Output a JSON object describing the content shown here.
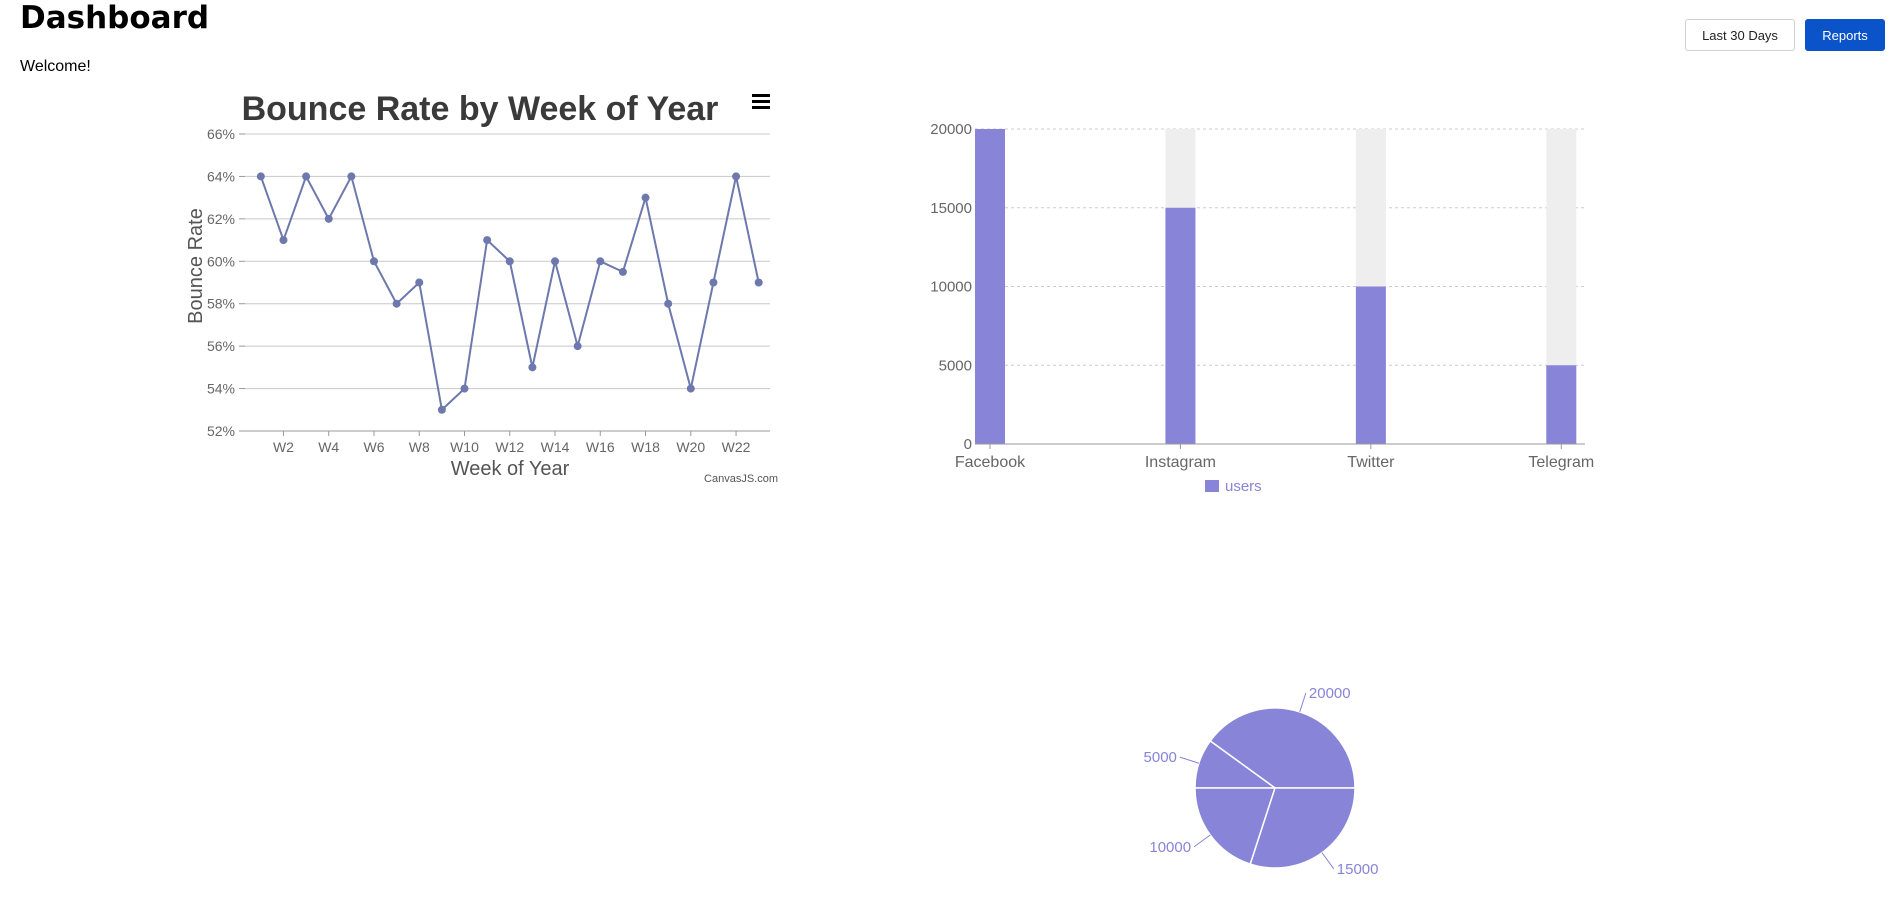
{
  "header": {
    "title": "Dashboard",
    "welcome": "Welcome!"
  },
  "toolbar": {
    "range_label": "Last 30 Days",
    "reports_label": "Reports",
    "accent_color": "#0b53c9"
  },
  "chart_data": [
    {
      "type": "line",
      "title": "Bounce Rate by Week of Year",
      "xlabel": "Week of Year",
      "ylabel": "Bounce Rate",
      "watermark": "CanvasJS.com",
      "menu_icon": "hamburger-menu-icon",
      "x_ticks": [
        "W2",
        "W4",
        "W6",
        "W8",
        "W10",
        "W12",
        "W14",
        "W16",
        "W18",
        "W20",
        "W22"
      ],
      "y_ticks": [
        "52%",
        "54%",
        "56%",
        "58%",
        "60%",
        "62%",
        "64%",
        "66%"
      ],
      "ylim": [
        52,
        66
      ],
      "xlim": [
        0.3,
        23.5
      ],
      "x": [
        1,
        2,
        3,
        4,
        5,
        6,
        7,
        8,
        9,
        10,
        11,
        12,
        13,
        14,
        15,
        16,
        17,
        18,
        19,
        20,
        21,
        22,
        23
      ],
      "values": [
        64,
        61,
        64,
        62,
        64,
        60,
        58,
        59,
        53,
        54,
        61,
        60,
        55,
        60,
        56,
        60,
        59.5,
        63,
        58,
        54,
        59,
        64,
        59
      ],
      "color": "#6d78ad",
      "grid": true
    },
    {
      "type": "bar",
      "categories": [
        "Facebook",
        "Instagram",
        "Twitter",
        "Telegram"
      ],
      "series": [
        {
          "name": "users",
          "values": [
            20000,
            15000,
            10000,
            5000
          ]
        }
      ],
      "y_ticks": [
        "0",
        "5000",
        "10000",
        "15000",
        "20000"
      ],
      "ylim": [
        0,
        20000
      ],
      "legend": "bottom",
      "bar_color": "#8884d8",
      "background_color": "#eeeeee",
      "grid": true
    },
    {
      "type": "pie",
      "values": [
        20000,
        5000,
        10000,
        15000
      ],
      "labels": [
        "20000",
        "5000",
        "10000",
        "15000"
      ],
      "color": "#8884d8"
    }
  ]
}
